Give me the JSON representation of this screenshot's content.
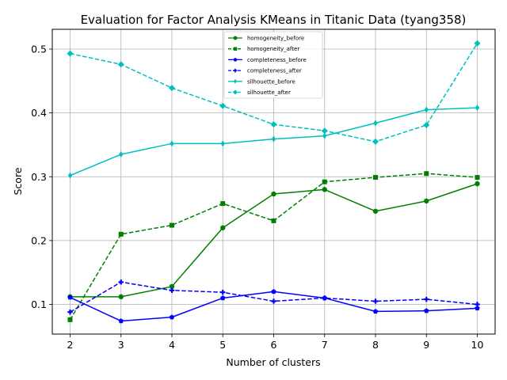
{
  "chart_data": {
    "type": "line",
    "title": "Evaluation for Factor Analysis KMeans in Titanic Data (tyang358)",
    "xlabel": "Number of clusters",
    "ylabel": "Score",
    "x": [
      2,
      3,
      4,
      5,
      6,
      7,
      8,
      9,
      10
    ],
    "xlim": [
      1.65,
      10.35
    ],
    "ylim": [
      0.0535,
      0.531
    ],
    "xticks": [
      "2",
      "3",
      "4",
      "5",
      "6",
      "7",
      "8",
      "9",
      "10"
    ],
    "yticks": [
      "0.1",
      "0.2",
      "0.3",
      "0.4",
      "0.5"
    ],
    "ytick_values": [
      0.1,
      0.2,
      0.3,
      0.4,
      0.5
    ],
    "grid": true,
    "legend_position": "top-center",
    "series": [
      {
        "name": "homogeneity_before",
        "color": "#008000",
        "dash": "solid",
        "marker": "circle",
        "values": [
          0.112,
          0.112,
          0.128,
          0.22,
          0.273,
          0.28,
          0.246,
          0.262,
          0.289
        ]
      },
      {
        "name": "homogeneity_after",
        "color": "#008000",
        "dash": "dashed",
        "marker": "square",
        "values": [
          0.076,
          0.21,
          0.224,
          0.258,
          0.231,
          0.292,
          0.299,
          0.305,
          0.299
        ]
      },
      {
        "name": "completeness_before",
        "color": "#0000ff",
        "dash": "solid",
        "marker": "pentagon",
        "values": [
          0.111,
          0.074,
          0.08,
          0.11,
          0.12,
          0.11,
          0.089,
          0.09,
          0.094
        ]
      },
      {
        "name": "completeness_after",
        "color": "#0000ff",
        "dash": "dashed",
        "marker": "plus",
        "values": [
          0.088,
          0.135,
          0.122,
          0.119,
          0.105,
          0.11,
          0.105,
          0.108,
          0.1
        ]
      },
      {
        "name": "silhouette_before",
        "color": "#00bfbf",
        "dash": "solid",
        "marker": "thin_diamond",
        "values": [
          0.302,
          0.335,
          0.352,
          0.352,
          0.359,
          0.364,
          0.384,
          0.405,
          0.408
        ]
      },
      {
        "name": "silhouette_after",
        "color": "#00bfbf",
        "dash": "dashed",
        "marker": "diamond",
        "values": [
          0.493,
          0.476,
          0.439,
          0.411,
          0.382,
          0.372,
          0.355,
          0.381,
          0.509
        ]
      }
    ]
  }
}
